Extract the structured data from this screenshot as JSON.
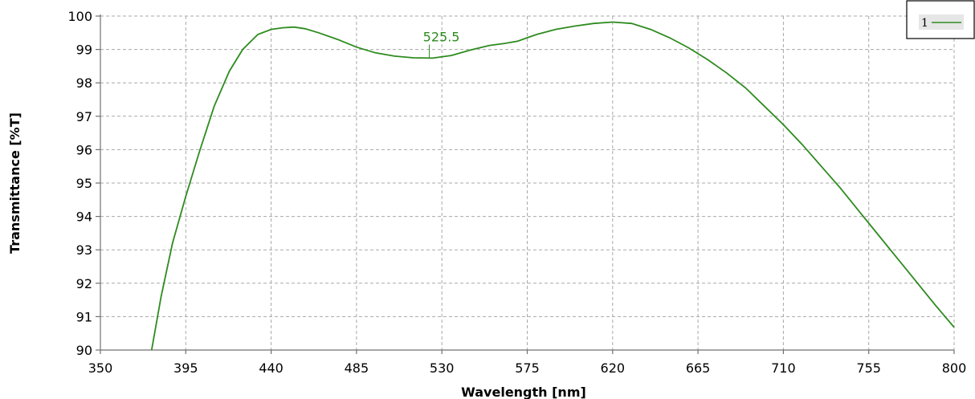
{
  "chart_data": {
    "type": "line",
    "xlabel": "Wavelength [nm]",
    "ylabel": "Transmittance [%T]",
    "xlim": [
      350,
      800
    ],
    "ylim": [
      90,
      100
    ],
    "xticks": [
      "350",
      "395",
      "440",
      "485",
      "530",
      "575",
      "620",
      "665",
      "710",
      "755",
      "800"
    ],
    "yticks": [
      "90",
      "91",
      "92",
      "93",
      "94",
      "95",
      "96",
      "97",
      "98",
      "99",
      "100"
    ],
    "grid": true,
    "legend_position": "top-right",
    "series": [
      {
        "name": "1",
        "color": "#2e8b1f",
        "x": [
          377,
          382,
          388,
          395,
          402,
          410,
          418,
          425,
          433,
          440,
          446,
          452,
          458,
          465,
          475,
          485,
          495,
          505,
          515,
          525,
          535,
          545,
          555,
          563,
          570,
          575,
          580,
          590,
          600,
          610,
          620,
          630,
          640,
          650,
          660,
          670,
          680,
          690,
          700,
          710,
          720,
          730,
          740,
          750,
          760,
          770,
          780,
          790,
          800
        ],
        "y": [
          90.0,
          91.6,
          93.2,
          94.6,
          95.9,
          97.3,
          98.35,
          99.0,
          99.45,
          99.6,
          99.65,
          99.67,
          99.62,
          99.5,
          99.3,
          99.07,
          98.9,
          98.8,
          98.75,
          98.74,
          98.82,
          98.98,
          99.12,
          99.18,
          99.25,
          99.35,
          99.45,
          99.6,
          99.7,
          99.78,
          99.82,
          99.78,
          99.6,
          99.35,
          99.05,
          98.7,
          98.3,
          97.85,
          97.3,
          96.75,
          96.15,
          95.5,
          94.85,
          94.15,
          93.45,
          92.75,
          92.05,
          91.35,
          90.68
        ]
      }
    ],
    "annotations": [
      {
        "text": "525.5",
        "x": 525.5,
        "y": 98.74
      }
    ]
  },
  "legend": {
    "entry_label": "1"
  }
}
